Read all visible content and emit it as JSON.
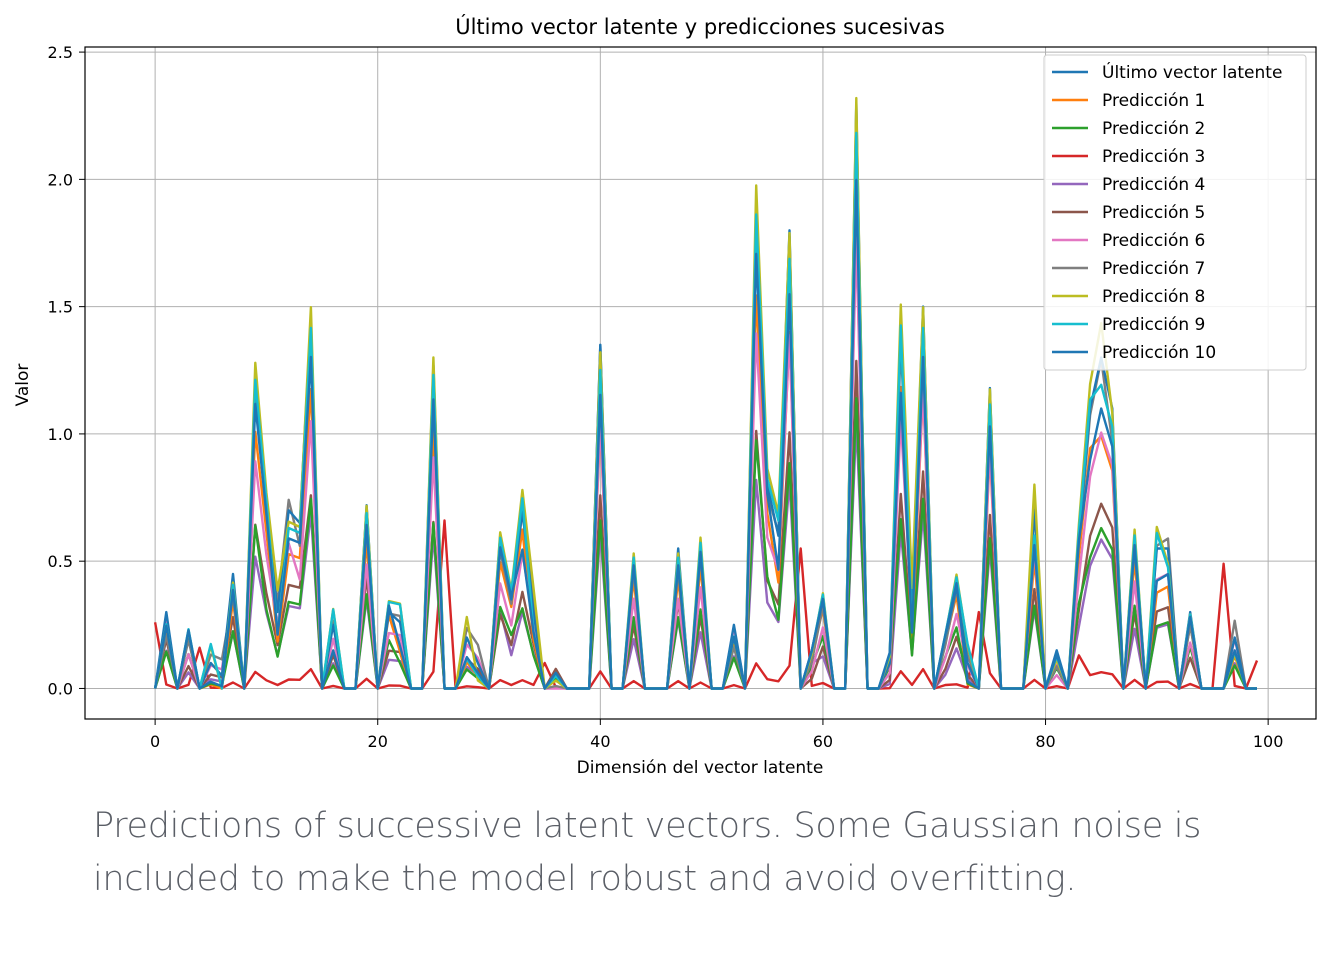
{
  "caption": "Predictions of successive latent vectors. Some Gaussian noise is included to make the model robust and avoid overfitting.",
  "chart_data": {
    "type": "line",
    "title": "Último vector latente y predicciones sucesivas",
    "xlabel": "Dimensión del vector latente",
    "ylabel": "Valor",
    "xlim": [
      -6.3,
      104.3
    ],
    "ylim": [
      -0.12,
      2.52
    ],
    "xticks": [
      0,
      20,
      40,
      60,
      80,
      100
    ],
    "yticks": [
      0.0,
      0.5,
      1.0,
      1.5,
      2.0,
      2.5
    ],
    "xtick_labels": [
      "0",
      "20",
      "40",
      "60",
      "80",
      "100"
    ],
    "ytick_labels": [
      "0.0",
      "0.5",
      "1.0",
      "1.5",
      "2.0",
      "2.5"
    ],
    "grid": true,
    "legend_position": "top-right",
    "x": [
      0,
      1,
      2,
      3,
      4,
      5,
      6,
      7,
      8,
      9,
      10,
      11,
      12,
      13,
      14,
      15,
      16,
      17,
      18,
      19,
      20,
      21,
      22,
      23,
      24,
      25,
      26,
      27,
      28,
      29,
      30,
      31,
      32,
      33,
      34,
      35,
      36,
      37,
      38,
      39,
      40,
      41,
      42,
      43,
      44,
      45,
      46,
      47,
      48,
      49,
      50,
      51,
      52,
      53,
      54,
      55,
      56,
      57,
      58,
      59,
      60,
      61,
      62,
      63,
      64,
      65,
      66,
      67,
      68,
      69,
      70,
      71,
      72,
      73,
      74,
      75,
      76,
      77,
      78,
      79,
      80,
      81,
      82,
      83,
      84,
      85,
      86,
      87,
      88,
      89,
      90,
      91,
      92,
      93,
      94,
      95,
      96,
      97,
      98,
      99
    ],
    "base": [
      0,
      0.3,
      0,
      0.22,
      0,
      0.1,
      0.05,
      0.45,
      0,
      1.22,
      0.7,
      0.3,
      0.7,
      0.65,
      1.45,
      0,
      0.25,
      0,
      0,
      0.72,
      0,
      0.3,
      0.26,
      0,
      0,
      1.27,
      0,
      0,
      0.2,
      0.1,
      0,
      0.6,
      0.35,
      0.7,
      0.3,
      0,
      0.06,
      0,
      0,
      0,
      1.35,
      0,
      0,
      0.5,
      0,
      0,
      0,
      0.55,
      0,
      0.55,
      0,
      0,
      0.25,
      0,
      1.9,
      0.8,
      0.6,
      1.8,
      0,
      0.15,
      0.35,
      0,
      0,
      2.3,
      0,
      0,
      0.1,
      1.4,
      0.3,
      1.5,
      0,
      0.2,
      0.4,
      0.1,
      0,
      1.18,
      0,
      0,
      0,
      0.7,
      0,
      0.15,
      0,
      0.6,
      1.1,
      1.3,
      1.1,
      0,
      0.6,
      0,
      0.55,
      0.55,
      0,
      0.3,
      0,
      0,
      0,
      0.2,
      0,
      0
    ],
    "colors": [
      "#1f77b4",
      "#ff7f0e",
      "#2ca02c",
      "#d62728",
      "#9467bd",
      "#8c564b",
      "#e377c2",
      "#7f7f7f",
      "#bcbd22",
      "#17becf",
      "#1f77b4"
    ],
    "scales": [
      1.0,
      0.8,
      0.5,
      0.05,
      0.45,
      0.55,
      0.75,
      0.95,
      1.04,
      0.97,
      0.88
    ],
    "offsets": [
      0,
      1,
      2,
      3,
      4,
      5,
      6,
      7,
      8,
      9,
      10
    ],
    "red_spikes": [
      [
        0,
        0.26
      ],
      [
        4,
        0.16
      ],
      [
        26,
        0.66
      ],
      [
        35,
        0.1
      ],
      [
        58,
        0.55
      ],
      [
        63,
        1.1
      ],
      [
        74,
        0.3
      ],
      [
        83,
        0.13
      ],
      [
        96,
        0.49
      ],
      [
        99,
        0.11
      ]
    ],
    "series": [
      {
        "name": "Último vector latente"
      },
      {
        "name": "Predicción 1"
      },
      {
        "name": "Predicción 2"
      },
      {
        "name": "Predicción 3"
      },
      {
        "name": "Predicción 4"
      },
      {
        "name": "Predicción 5"
      },
      {
        "name": "Predicción 6"
      },
      {
        "name": "Predicción 7"
      },
      {
        "name": "Predicción 8"
      },
      {
        "name": "Predicción 9"
      },
      {
        "name": "Predicción 10"
      }
    ]
  }
}
